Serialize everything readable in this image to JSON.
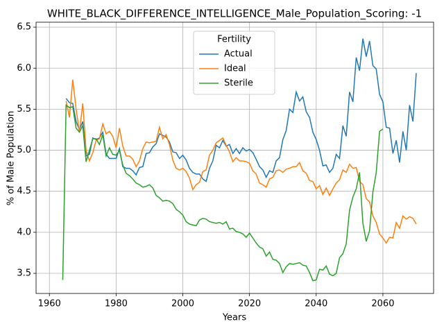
{
  "chart_data": {
    "type": "line",
    "title": "WHITE_BLACK_DIFFERENCE_INTELLIGENCE_Male_Population_Scoring: -1",
    "x_label": "Years",
    "y_label": "% of Male Population",
    "legend_title": "Fertility",
    "legend_position": "upper center",
    "grid": true,
    "xlim": [
      1956,
      2075.2
    ],
    "ylim": [
      3.255,
      6.56
    ],
    "xticks": [
      1960,
      1980,
      2000,
      2020,
      2040,
      2060
    ],
    "yticks": [
      3.5,
      {
        "value": 4,
        "label": "4.0"
      },
      4.5,
      {
        "value": 5,
        "label": "5.0"
      },
      5.5,
      {
        "value": 6,
        "label": "6.0"
      },
      6.5
    ],
    "x": [
      1964,
      1965,
      1966,
      1967,
      1968,
      1969,
      1970,
      1971,
      1972,
      1973,
      1974,
      1975,
      1976,
      1977,
      1978,
      1979,
      1980,
      1981,
      1982,
      1983,
      1984,
      1985,
      1986,
      1987,
      1988,
      1989,
      1990,
      1991,
      1992,
      1993,
      1994,
      1995,
      1996,
      1997,
      1998,
      1999,
      2000,
      2001,
      2002,
      2003,
      2004,
      2005,
      2006,
      2007,
      2008,
      2009,
      2010,
      2011,
      2012,
      2013,
      2014,
      2015,
      2016,
      2017,
      2018,
      2019,
      2020,
      2021,
      2022,
      2023,
      2024,
      2025,
      2026,
      2027,
      2028,
      2029,
      2030,
      2031,
      2032,
      2033,
      2034,
      2035,
      2036,
      2037,
      2038,
      2039,
      2040,
      2041,
      2042,
      2043,
      2044,
      2045,
      2046,
      2047,
      2048,
      2049,
      2050,
      2051,
      2052,
      2053,
      2054,
      2055,
      2056,
      2057,
      2058,
      2059,
      2060,
      2061,
      2062,
      2063,
      2064,
      2065,
      2066,
      2067,
      2068,
      2069,
      2070
    ],
    "series": [
      {
        "name": "Actual",
        "color": "#1f77b4",
        "values": [
          null,
          5.63,
          5.58,
          5.57,
          5.35,
          5.25,
          5.35,
          4.93,
          4.95,
          5.15,
          5.13,
          5.15,
          5.22,
          4.95,
          4.9,
          4.9,
          4.9,
          5.02,
          4.8,
          4.78,
          4.78,
          4.75,
          4.7,
          4.79,
          4.8,
          4.96,
          4.97,
          5.04,
          5.08,
          5.2,
          5.18,
          5.16,
          5.1,
          4.98,
          4.97,
          4.9,
          4.94,
          4.88,
          4.78,
          4.73,
          4.71,
          4.71,
          4.65,
          4.62,
          4.78,
          4.87,
          5.06,
          5.03,
          5.12,
          5.05,
          5.07,
          4.96,
          5.02,
          4.96,
          5.03,
          4.99,
          5.01,
          4.97,
          4.89,
          4.8,
          4.76,
          4.67,
          4.75,
          4.73,
          4.87,
          4.91,
          5.13,
          5.24,
          5.5,
          5.46,
          5.71,
          5.6,
          5.65,
          5.47,
          5.4,
          5.22,
          5.13,
          5.0,
          4.81,
          4.82,
          4.73,
          4.78,
          4.95,
          4.9,
          5.3,
          5.17,
          5.71,
          5.59,
          6.13,
          5.97,
          6.36,
          6.14,
          6.33,
          6.03,
          5.99,
          5.68,
          5.59,
          5.28,
          5.27,
          4.96,
          5.12,
          4.85,
          5.23,
          5.0,
          5.55,
          5.35,
          5.94
        ]
      },
      {
        "name": "Ideal",
        "color": "#ff7f0e",
        "values": [
          null,
          5.6,
          5.4,
          5.86,
          5.5,
          5.22,
          5.57,
          5.0,
          4.87,
          4.97,
          5.12,
          5.14,
          5.32,
          5.2,
          5.23,
          5.17,
          5.03,
          5.27,
          5.05,
          4.93,
          4.93,
          4.89,
          4.8,
          4.87,
          5.02,
          5.1,
          5.09,
          5.1,
          5.11,
          5.28,
          5.14,
          5.19,
          5.07,
          4.88,
          4.78,
          4.76,
          4.78,
          4.74,
          4.66,
          4.52,
          4.58,
          4.61,
          4.74,
          4.76,
          4.94,
          5.0,
          5.09,
          5.12,
          5.15,
          5.06,
          4.98,
          4.86,
          4.91,
          4.87,
          4.87,
          4.86,
          4.84,
          4.75,
          4.71,
          4.6,
          4.58,
          4.55,
          4.65,
          4.67,
          4.75,
          4.76,
          4.73,
          4.77,
          4.78,
          4.8,
          4.8,
          4.85,
          4.75,
          4.72,
          4.63,
          4.62,
          4.53,
          4.57,
          4.46,
          4.54,
          4.45,
          4.53,
          4.6,
          4.64,
          4.76,
          4.73,
          4.83,
          4.78,
          4.79,
          4.62,
          4.58,
          4.41,
          4.37,
          4.2,
          4.12,
          3.98,
          3.93,
          3.87,
          3.94,
          3.93,
          4.12,
          4.05,
          4.2,
          4.16,
          4.19,
          4.17,
          4.1
        ]
      },
      {
        "name": "Sterile",
        "color": "#2ca02c",
        "values": [
          3.42,
          5.55,
          5.52,
          5.53,
          5.27,
          5.22,
          5.3,
          4.86,
          5.0,
          5.14,
          5.14,
          5.07,
          5.19,
          4.93,
          5.03,
          4.95,
          4.94,
          5.0,
          4.82,
          4.72,
          4.69,
          4.65,
          4.6,
          4.58,
          4.55,
          4.56,
          4.58,
          4.54,
          4.45,
          4.42,
          4.38,
          4.39,
          4.38,
          4.35,
          4.28,
          4.25,
          4.21,
          4.13,
          4.1,
          4.09,
          4.08,
          4.15,
          4.17,
          4.16,
          4.13,
          4.12,
          4.11,
          4.12,
          4.1,
          4.13,
          4.04,
          4.05,
          4.01,
          4.0,
          3.98,
          3.94,
          3.99,
          3.93,
          3.87,
          3.82,
          3.8,
          3.71,
          3.76,
          3.67,
          3.66,
          3.62,
          3.51,
          3.58,
          3.62,
          3.61,
          3.62,
          3.63,
          3.6,
          3.59,
          3.51,
          3.41,
          3.42,
          3.55,
          3.54,
          3.59,
          3.49,
          3.47,
          3.5,
          3.69,
          3.74,
          3.86,
          4.27,
          4.43,
          4.53,
          4.73,
          4.11,
          3.89,
          4.02,
          4.49,
          4.73,
          5.23,
          5.26,
          null,
          null,
          null,
          null,
          null,
          null,
          null,
          null,
          null,
          null
        ]
      }
    ]
  }
}
